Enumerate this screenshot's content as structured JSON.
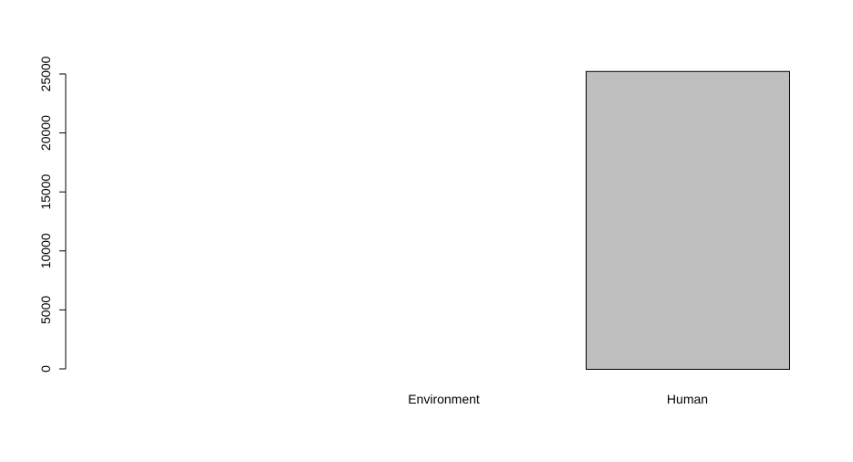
{
  "chart_data": {
    "type": "bar",
    "categories": [
      "",
      "Environment",
      "Human"
    ],
    "values": [
      0,
      0,
      25250
    ],
    "title": "",
    "xlabel": "",
    "ylabel": "",
    "ylim": [
      0,
      25000
    ],
    "yticks": [
      0,
      5000,
      10000,
      15000,
      20000,
      25000
    ],
    "ytick_labels": [
      "0",
      "5000",
      "10000",
      "15000",
      "20000",
      "25000"
    ],
    "grid": false,
    "legend": "none",
    "colors": {
      "bar_fill": "#bebebe",
      "bar_stroke": "#000000",
      "axis": "#000000"
    }
  }
}
